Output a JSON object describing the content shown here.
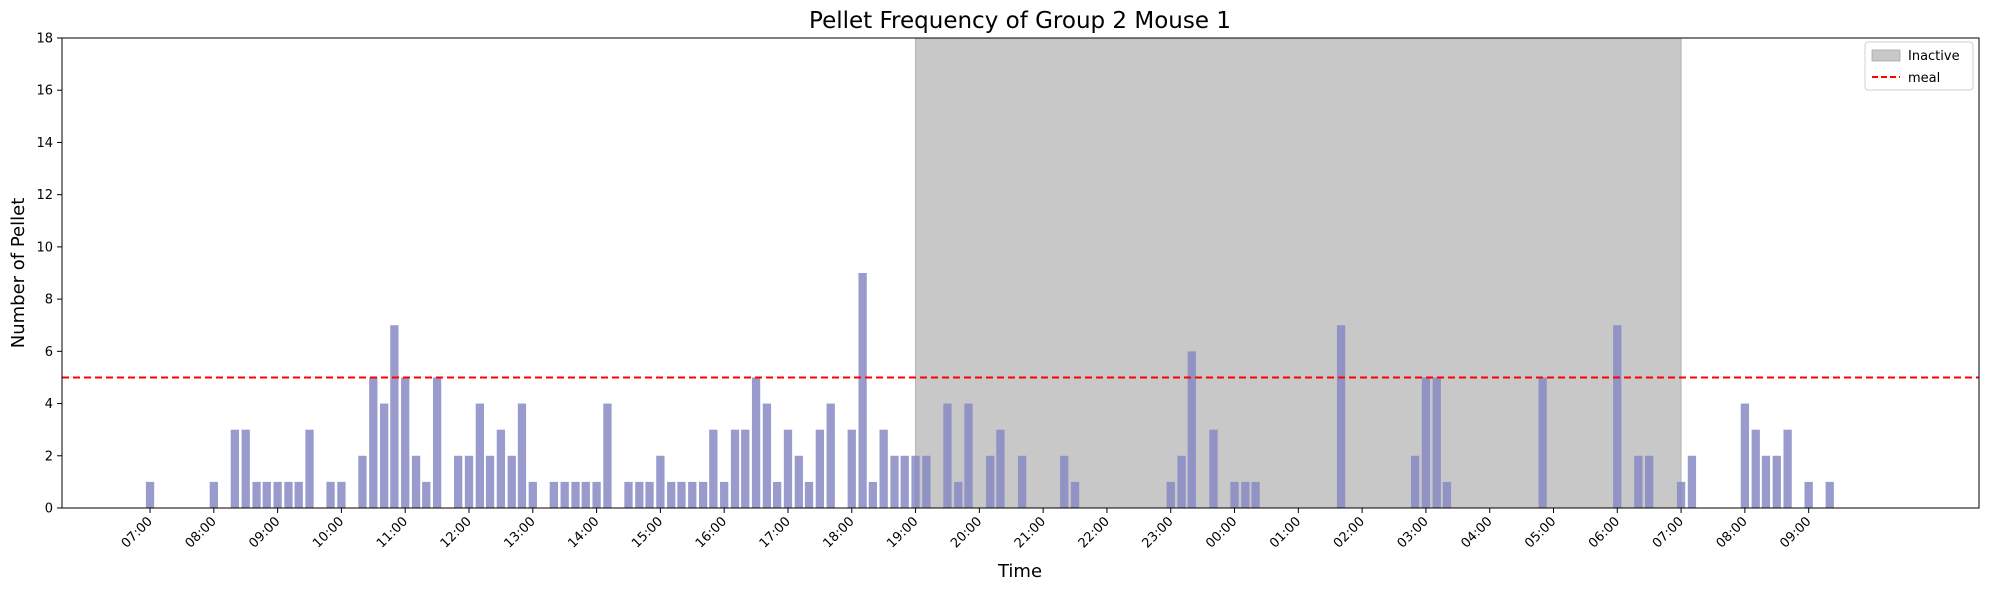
{
  "chart_data": {
    "type": "bar",
    "title": "Pellet Frequency of Group 2 Mouse 1",
    "xlabel": "Time",
    "ylabel": "Number of Pellet",
    "ylim": [
      0,
      18
    ],
    "yticks": [
      0,
      2,
      4,
      6,
      8,
      10,
      12,
      14,
      16,
      18
    ],
    "x_unit": "hours elapsed after the first day's 00:00",
    "xlim": [
      5.62,
      35.67
    ],
    "xtick_positions": [
      7,
      8,
      9,
      10,
      11,
      12,
      13,
      14,
      15,
      16,
      17,
      18,
      19,
      20,
      21,
      22,
      23,
      24,
      25,
      26,
      27,
      28,
      29,
      30,
      31,
      32,
      33
    ],
    "xtick_labels": [
      "07:00",
      "08:00",
      "09:00",
      "10:00",
      "11:00",
      "12:00",
      "13:00",
      "14:00",
      "15:00",
      "16:00",
      "17:00",
      "18:00",
      "19:00",
      "20:00",
      "21:00",
      "22:00",
      "23:00",
      "00:00",
      "01:00",
      "02:00",
      "03:00",
      "04:00",
      "05:00",
      "06:00",
      "07:00",
      "08:00",
      "09:00"
    ],
    "bar_width_hours": 0.13,
    "bar_color": "#8789c4",
    "x": [
      7.0,
      8.0,
      8.33,
      8.5,
      8.67,
      8.83,
      9.0,
      9.17,
      9.33,
      9.5,
      9.83,
      10.0,
      10.33,
      10.5,
      10.67,
      10.83,
      11.0,
      11.17,
      11.33,
      11.5,
      11.83,
      12.0,
      12.17,
      12.33,
      12.5,
      12.67,
      12.83,
      13.0,
      13.33,
      13.5,
      13.67,
      13.83,
      14.0,
      14.17,
      14.5,
      14.67,
      14.83,
      15.0,
      15.17,
      15.33,
      15.5,
      15.67,
      15.83,
      16.0,
      16.17,
      16.33,
      16.5,
      16.67,
      16.83,
      17.0,
      17.17,
      17.33,
      17.5,
      17.67,
      18.0,
      18.17,
      18.33,
      18.5,
      18.67,
      18.83,
      19.0,
      19.17,
      19.5,
      19.67,
      19.83,
      20.17,
      20.33,
      20.67,
      21.33,
      21.5,
      23.0,
      23.17,
      23.33,
      23.67,
      24.0,
      24.17,
      24.33,
      25.67,
      26.83,
      27.0,
      27.17,
      27.33,
      28.83,
      30.0,
      30.33,
      30.5,
      31.0,
      31.17,
      32.0,
      32.17,
      32.33,
      32.5,
      32.67,
      33.0,
      33.33
    ],
    "values": [
      1,
      1,
      3,
      3,
      1,
      1,
      1,
      1,
      1,
      3,
      1,
      1,
      2,
      5,
      4,
      7,
      5,
      2,
      1,
      5,
      2,
      2,
      4,
      2,
      3,
      2,
      4,
      1,
      1,
      1,
      1,
      1,
      1,
      4,
      1,
      1,
      1,
      2,
      1,
      1,
      1,
      1,
      3,
      1,
      3,
      3,
      5,
      4,
      1,
      3,
      2,
      1,
      3,
      4,
      3,
      9,
      1,
      3,
      2,
      2,
      2,
      2,
      4,
      1,
      4,
      2,
      3,
      2,
      2,
      1,
      1,
      2,
      6,
      3,
      1,
      1,
      1,
      7,
      2,
      5,
      5,
      1,
      5,
      7,
      2,
      2,
      1,
      2,
      4,
      3,
      2,
      2,
      3,
      1,
      1
    ],
    "inactive_span": [
      19,
      31
    ],
    "meal_threshold": 5,
    "legend": {
      "position": "upper right",
      "items": [
        {
          "label": "Inactive",
          "color": "#c8c8c8",
          "kind": "patch"
        },
        {
          "label": "meal",
          "color": "#ff0000",
          "kind": "dashed-line"
        }
      ]
    },
    "grid": false
  }
}
